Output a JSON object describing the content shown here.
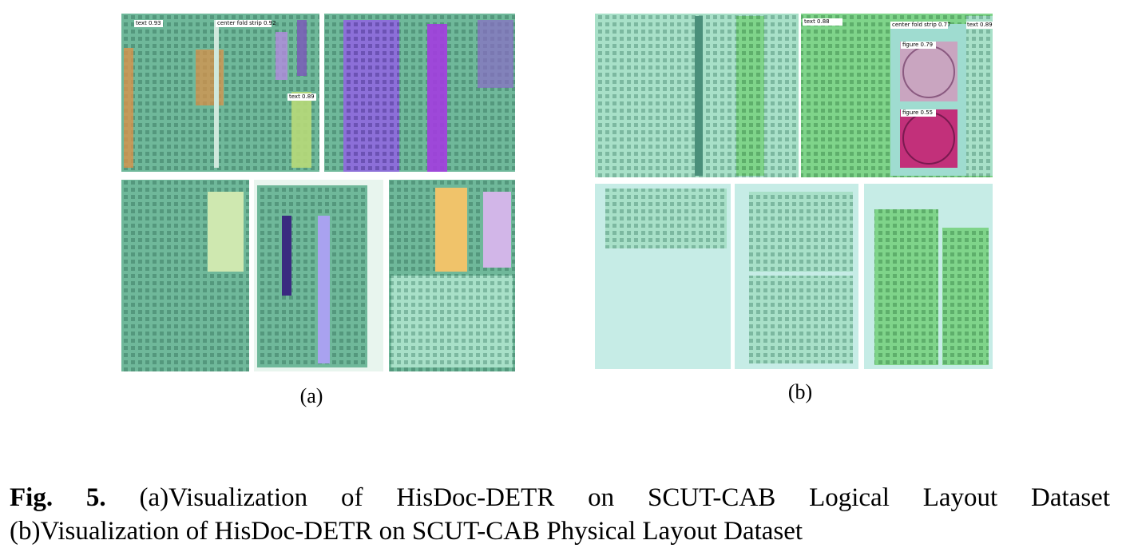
{
  "figure": {
    "panels": [
      {
        "label": "(a)",
        "detections": [
          "text 0.93",
          "center fold strip 0.92",
          "text 0.89"
        ]
      },
      {
        "label": "(b)",
        "detections": [
          "text 0.88",
          "center fold strip 0.77",
          "figure 0.79",
          "figure 0.55",
          "text 0.89"
        ]
      }
    ]
  },
  "caption": {
    "label": "Fig. 5.",
    "lines": [
      "(a)Visualization of HisDoc-DETR on SCUT-CAB Logical Layout Dataset",
      "(b)Visualization of HisDoc-DETR on SCUT-CAB Physical Layout Dataset"
    ]
  }
}
